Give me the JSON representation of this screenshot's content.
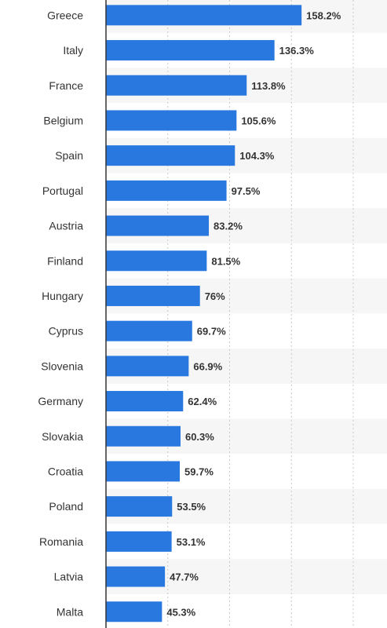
{
  "chart_data": {
    "type": "bar",
    "orientation": "horizontal",
    "categories": [
      "Greece",
      "Italy",
      "France",
      "Belgium",
      "Spain",
      "Portugal",
      "Austria",
      "Finland",
      "Hungary",
      "Cyprus",
      "Slovenia",
      "Germany",
      "Slovakia",
      "Croatia",
      "Poland",
      "Romania",
      "Latvia",
      "Malta"
    ],
    "values": [
      158.2,
      136.3,
      113.8,
      105.6,
      104.3,
      97.5,
      83.2,
      81.5,
      76,
      69.7,
      66.9,
      62.4,
      60.3,
      59.7,
      53.5,
      53.1,
      47.7,
      45.3
    ],
    "value_labels": [
      "158.2%",
      "136.3%",
      "113.8%",
      "105.6%",
      "104.3%",
      "97.5%",
      "83.2%",
      "81.5%",
      "76%",
      "69.7%",
      "66.9%",
      "62.4%",
      "60.3%",
      "59.7%",
      "53.5%",
      "53.1%",
      "47.7%",
      "45.3%"
    ],
    "xlim": [
      0,
      200
    ],
    "grid": true,
    "colors": {
      "bar": "#2878e0",
      "band": "#f6f6f6",
      "grid": "#c8c8c8",
      "axis": "#333333",
      "text": "#333333"
    }
  }
}
